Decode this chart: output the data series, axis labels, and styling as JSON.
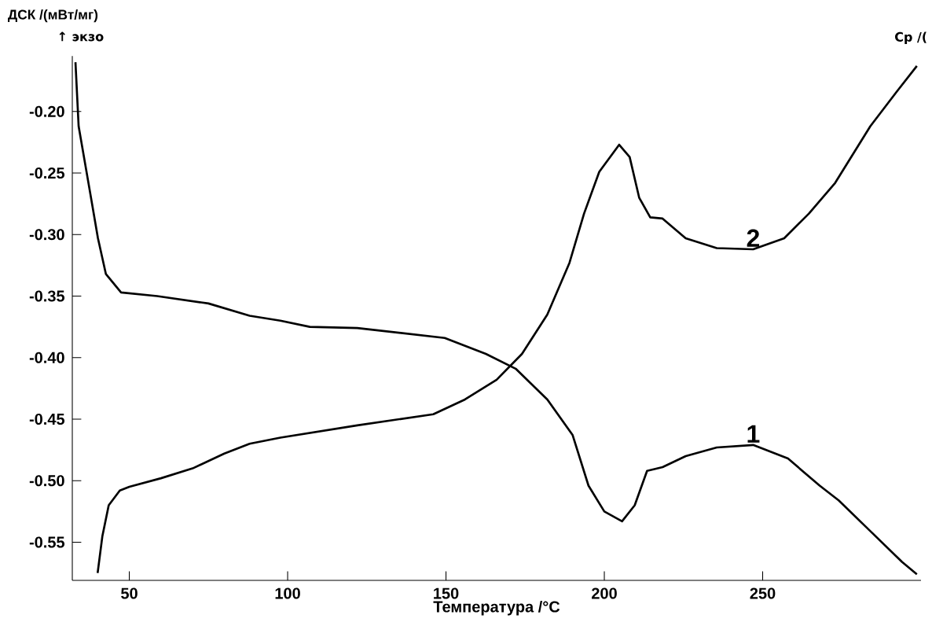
{
  "chart_data": {
    "type": "line",
    "ylabel": "ДСК /(мВт/мг)",
    "xlabel": "Температура /°C",
    "annotations": [
      "↑ экзо",
      "Cp /("
    ],
    "xlim": [
      32,
      300
    ],
    "ylim": [
      -0.581,
      -0.155
    ],
    "xticks": [
      50,
      100,
      150,
      200,
      250
    ],
    "yticks": [
      {
        "value": -0.2,
        "label": "-0.20"
      },
      {
        "value": -0.25,
        "label": "-0.25"
      },
      {
        "value": -0.3,
        "label": "-0.30"
      },
      {
        "value": -0.35,
        "label": "-0.35"
      },
      {
        "value": -0.4,
        "label": "-0.40"
      },
      {
        "value": -0.45,
        "label": "-0.45"
      },
      {
        "value": -0.5,
        "label": "-0.50"
      },
      {
        "value": -0.55,
        "label": "-0.55"
      }
    ],
    "grid": false,
    "legend": false,
    "marker": "none",
    "line_style": "solid",
    "series": [
      {
        "name": "1",
        "color": "#000000",
        "x": [
          33,
          34,
          37.7,
          40.1,
          42.6,
          47.4,
          58.8,
          75,
          88,
          97.7,
          107,
          122,
          149.6,
          162.6,
          172,
          182,
          190,
          195,
          200,
          205.6,
          209.6,
          213.5,
          218.4,
          225.7,
          235.5,
          247,
          258,
          268,
          274,
          284,
          294,
          298.7
        ],
        "values": [
          -0.16,
          -0.212,
          -0.267,
          -0.303,
          -0.332,
          -0.347,
          -0.35,
          -0.356,
          -0.366,
          -0.37,
          -0.375,
          -0.376,
          -0.384,
          -0.397,
          -0.409,
          -0.434,
          -0.463,
          -0.504,
          -0.525,
          -0.533,
          -0.52,
          -0.492,
          -0.489,
          -0.48,
          -0.473,
          -0.471,
          -0.482,
          -0.504,
          -0.516,
          -0.541,
          -0.566,
          -0.576
        ]
      },
      {
        "name": "2",
        "color": "#000000",
        "x": [
          40,
          41.5,
          43.5,
          47,
          50,
          60,
          70,
          80,
          88,
          97.7,
          122,
          146,
          156,
          166,
          174,
          182,
          189,
          193.6,
          198.4,
          204.7,
          208,
          211,
          214.5,
          218.4,
          225.7,
          235.5,
          247,
          256.8,
          264.6,
          272.9,
          284,
          292.3,
          298.7
        ],
        "values": [
          -0.575,
          -0.545,
          -0.52,
          -0.508,
          -0.505,
          -0.498,
          -0.49,
          -0.478,
          -0.47,
          -0.465,
          -0.455,
          -0.446,
          -0.434,
          -0.418,
          -0.397,
          -0.365,
          -0.323,
          -0.283,
          -0.249,
          -0.227,
          -0.237,
          -0.27,
          -0.286,
          -0.287,
          -0.303,
          -0.311,
          -0.312,
          -0.303,
          -0.283,
          -0.258,
          -0.212,
          -0.184,
          -0.163
        ]
      }
    ]
  }
}
